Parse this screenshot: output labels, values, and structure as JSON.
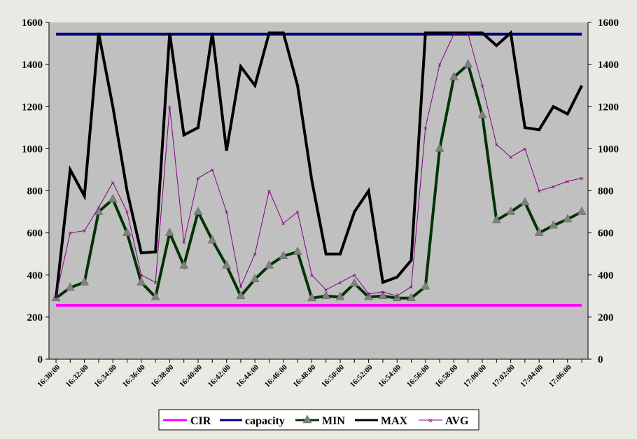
{
  "chart_data": {
    "type": "line",
    "title": "",
    "xlabel": "",
    "ylabel": "",
    "ylim": [
      0,
      1600
    ],
    "y_ticks": [
      "0",
      "200",
      "400",
      "600",
      "800",
      "1000",
      "1200",
      "1400",
      "1600"
    ],
    "y2_ticks": [
      "0",
      "200",
      "400",
      "600",
      "800",
      "1000",
      "1200",
      "1400",
      "1600"
    ],
    "x_tick_labels": [
      "16:30:00",
      "16:32:00",
      "16:34:00",
      "16:36:00",
      "16:38:00",
      "16:40:00",
      "16:42:00",
      "16:44:00",
      "16:46:00",
      "16:48:00",
      "16:50:00",
      "16:52:00",
      "16:54:00",
      "16:56:00",
      "16:58:00",
      "17:00:00",
      "17:02:00",
      "17:04:00",
      "17:06:00"
    ],
    "x_minutes": [
      0,
      1,
      2,
      3,
      4,
      5,
      6,
      7,
      8,
      9,
      10,
      11,
      12,
      13,
      14,
      15,
      16,
      17,
      18,
      19,
      20,
      21,
      22,
      23,
      24,
      25,
      26,
      27,
      28,
      29,
      30,
      31,
      32,
      33,
      34,
      35,
      36,
      37
    ],
    "grid": false,
    "plot_background": "#c0c0c0",
    "legend_position": "bottom",
    "series": [
      {
        "name": "CIR",
        "color": "#ff00ff",
        "style": "thick",
        "values": [
          256,
          256,
          256,
          256,
          256,
          256,
          256,
          256,
          256,
          256,
          256,
          256,
          256,
          256,
          256,
          256,
          256,
          256,
          256,
          256,
          256,
          256,
          256,
          256,
          256,
          256,
          256,
          256,
          256,
          256,
          256,
          256,
          256,
          256,
          256,
          256,
          256,
          256
        ]
      },
      {
        "name": "capacity",
        "color": "#000080",
        "style": "thick",
        "values": [
          1544,
          1544,
          1544,
          1544,
          1544,
          1544,
          1544,
          1544,
          1544,
          1544,
          1544,
          1544,
          1544,
          1544,
          1544,
          1544,
          1544,
          1544,
          1544,
          1544,
          1544,
          1544,
          1544,
          1544,
          1544,
          1544,
          1544,
          1544,
          1544,
          1544,
          1544,
          1544,
          1544,
          1544,
          1544,
          1544,
          1544,
          1544
        ]
      },
      {
        "name": "MIN",
        "color": "#003300",
        "style": "thick-marker",
        "values": [
          290,
          340,
          365,
          700,
          760,
          600,
          365,
          295,
          600,
          445,
          700,
          565,
          445,
          300,
          380,
          445,
          490,
          510,
          290,
          300,
          295,
          360,
          295,
          300,
          290,
          290,
          345,
          1000,
          1340,
          1400,
          1160,
          660,
          700,
          745,
          600,
          635,
          665,
          700
        ]
      },
      {
        "name": "MAX",
        "color": "#000000",
        "style": "thick",
        "values": [
          290,
          900,
          775,
          1550,
          1200,
          800,
          505,
          510,
          1550,
          1065,
          1100,
          1550,
          990,
          1390,
          1300,
          1550,
          1550,
          1300,
          850,
          500,
          500,
          700,
          800,
          365,
          390,
          470,
          1550,
          1550,
          1550,
          1550,
          1550,
          1490,
          1550,
          1100,
          1090,
          1200,
          1165,
          1300
        ]
      },
      {
        "name": "AVG",
        "color": "#800080",
        "style": "thin-star",
        "values": [
          300,
          600,
          610,
          720,
          840,
          700,
          400,
          365,
          1200,
          555,
          860,
          900,
          700,
          345,
          500,
          800,
          645,
          700,
          400,
          330,
          365,
          400,
          310,
          320,
          300,
          345,
          1100,
          1400,
          1545,
          1545,
          1300,
          1020,
          960,
          1000,
          800,
          820,
          845,
          860
        ]
      }
    ]
  }
}
